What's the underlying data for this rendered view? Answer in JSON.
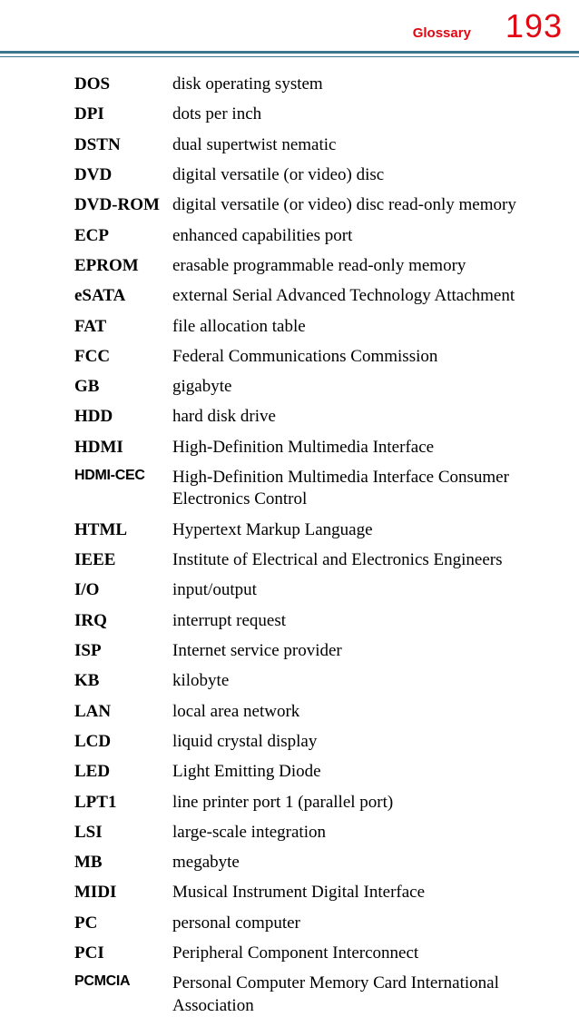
{
  "header": {
    "section_title": "Glossary",
    "section_title_color": "#e30613",
    "page_number": "193",
    "page_number_color": "#e30613",
    "divider_color": "#3a768f"
  },
  "entries": [
    {
      "term": "DOS",
      "definition": "disk operating system",
      "condensed": false
    },
    {
      "term": "DPI",
      "definition": "dots per inch",
      "condensed": false
    },
    {
      "term": "DSTN",
      "definition": "dual supertwist nematic",
      "condensed": false
    },
    {
      "term": "DVD",
      "definition": "digital versatile (or video) disc",
      "condensed": false
    },
    {
      "term": "DVD-ROM",
      "definition": "digital versatile (or video) disc read-only memory",
      "condensed": false
    },
    {
      "term": "ECP",
      "definition": "enhanced capabilities port",
      "condensed": false
    },
    {
      "term": "EPROM",
      "definition": "erasable programmable read-only memory",
      "condensed": false
    },
    {
      "term": "eSATA",
      "definition": "external Serial Advanced Technology Attachment",
      "condensed": false
    },
    {
      "term": "FAT",
      "definition": "file allocation table",
      "condensed": false
    },
    {
      "term": "FCC",
      "definition": "Federal Communications Commission",
      "condensed": false
    },
    {
      "term": "GB",
      "definition": "gigabyte",
      "condensed": false
    },
    {
      "term": "HDD",
      "definition": "hard disk drive",
      "condensed": false
    },
    {
      "term": "HDMI",
      "definition": "High-Definition Multimedia Interface",
      "condensed": false
    },
    {
      "term": "HDMI-CEC",
      "definition": "High-Definition Multimedia Interface Consumer Electronics Control",
      "condensed": true
    },
    {
      "term": "HTML",
      "definition": "Hypertext Markup Language",
      "condensed": false
    },
    {
      "term": "IEEE",
      "definition": "Institute of Electrical and Electronics Engineers",
      "condensed": false
    },
    {
      "term": "I/O",
      "definition": "input/output",
      "condensed": false
    },
    {
      "term": "IRQ",
      "definition": "interrupt request",
      "condensed": false
    },
    {
      "term": "ISP",
      "definition": "Internet service provider",
      "condensed": false
    },
    {
      "term": "KB",
      "definition": "kilobyte",
      "condensed": false
    },
    {
      "term": "LAN",
      "definition": "local area network",
      "condensed": false
    },
    {
      "term": "LCD",
      "definition": "liquid crystal display",
      "condensed": false
    },
    {
      "term": "LED",
      "definition": "Light Emitting Diode",
      "condensed": false
    },
    {
      "term": "LPT1",
      "definition": "line printer port 1 (parallel port)",
      "condensed": false
    },
    {
      "term": "LSI",
      "definition": "large-scale integration",
      "condensed": false
    },
    {
      "term": "MB",
      "definition": "megabyte",
      "condensed": false
    },
    {
      "term": "MIDI",
      "definition": "Musical Instrument Digital Interface",
      "condensed": false
    },
    {
      "term": "PC",
      "definition": "personal computer",
      "condensed": false
    },
    {
      "term": "PCI",
      "definition": "Peripheral Component Interconnect",
      "condensed": false
    },
    {
      "term": "PCMCIA",
      "definition": "Personal Computer Memory Card International Association",
      "condensed": true
    }
  ]
}
